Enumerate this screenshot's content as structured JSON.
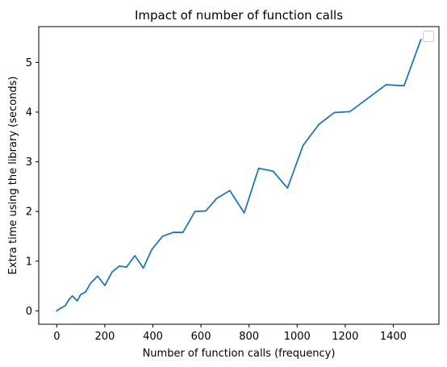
{
  "chart_data": {
    "type": "line",
    "title": "Impact of number of function calls",
    "xlabel": "Number of function calls (frequency)",
    "ylabel": "Extra time using the library (seconds)",
    "xlim": [
      -75,
      1590
    ],
    "ylim": [
      -0.27,
      5.72
    ],
    "xticks": [
      0,
      200,
      400,
      600,
      800,
      1000,
      1200,
      1400
    ],
    "yticks": [
      0,
      1,
      2,
      3,
      4,
      5
    ],
    "grid": false,
    "legend": "top-right",
    "colors": {
      "line": "#1f77b4"
    },
    "series": [
      {
        "x": [
          0,
          15,
          35,
          50,
          65,
          85,
          100,
          120,
          140,
          170,
          200,
          230,
          260,
          290,
          325,
          360,
          395,
          440,
          485,
          525,
          575,
          620,
          665,
          720,
          780,
          840,
          900,
          960,
          1025,
          1090,
          1155,
          1220,
          1295,
          1370,
          1445,
          1515
        ],
        "y": [
          0.0,
          0.05,
          0.1,
          0.22,
          0.3,
          0.2,
          0.33,
          0.38,
          0.55,
          0.7,
          0.51,
          0.78,
          0.9,
          0.88,
          1.11,
          0.86,
          1.23,
          1.5,
          1.58,
          1.58,
          2.0,
          2.01,
          2.26,
          2.42,
          1.97,
          2.87,
          2.81,
          2.47,
          3.33,
          3.75,
          3.99,
          4.01,
          4.28,
          4.55,
          4.53,
          5.46
        ]
      }
    ]
  }
}
